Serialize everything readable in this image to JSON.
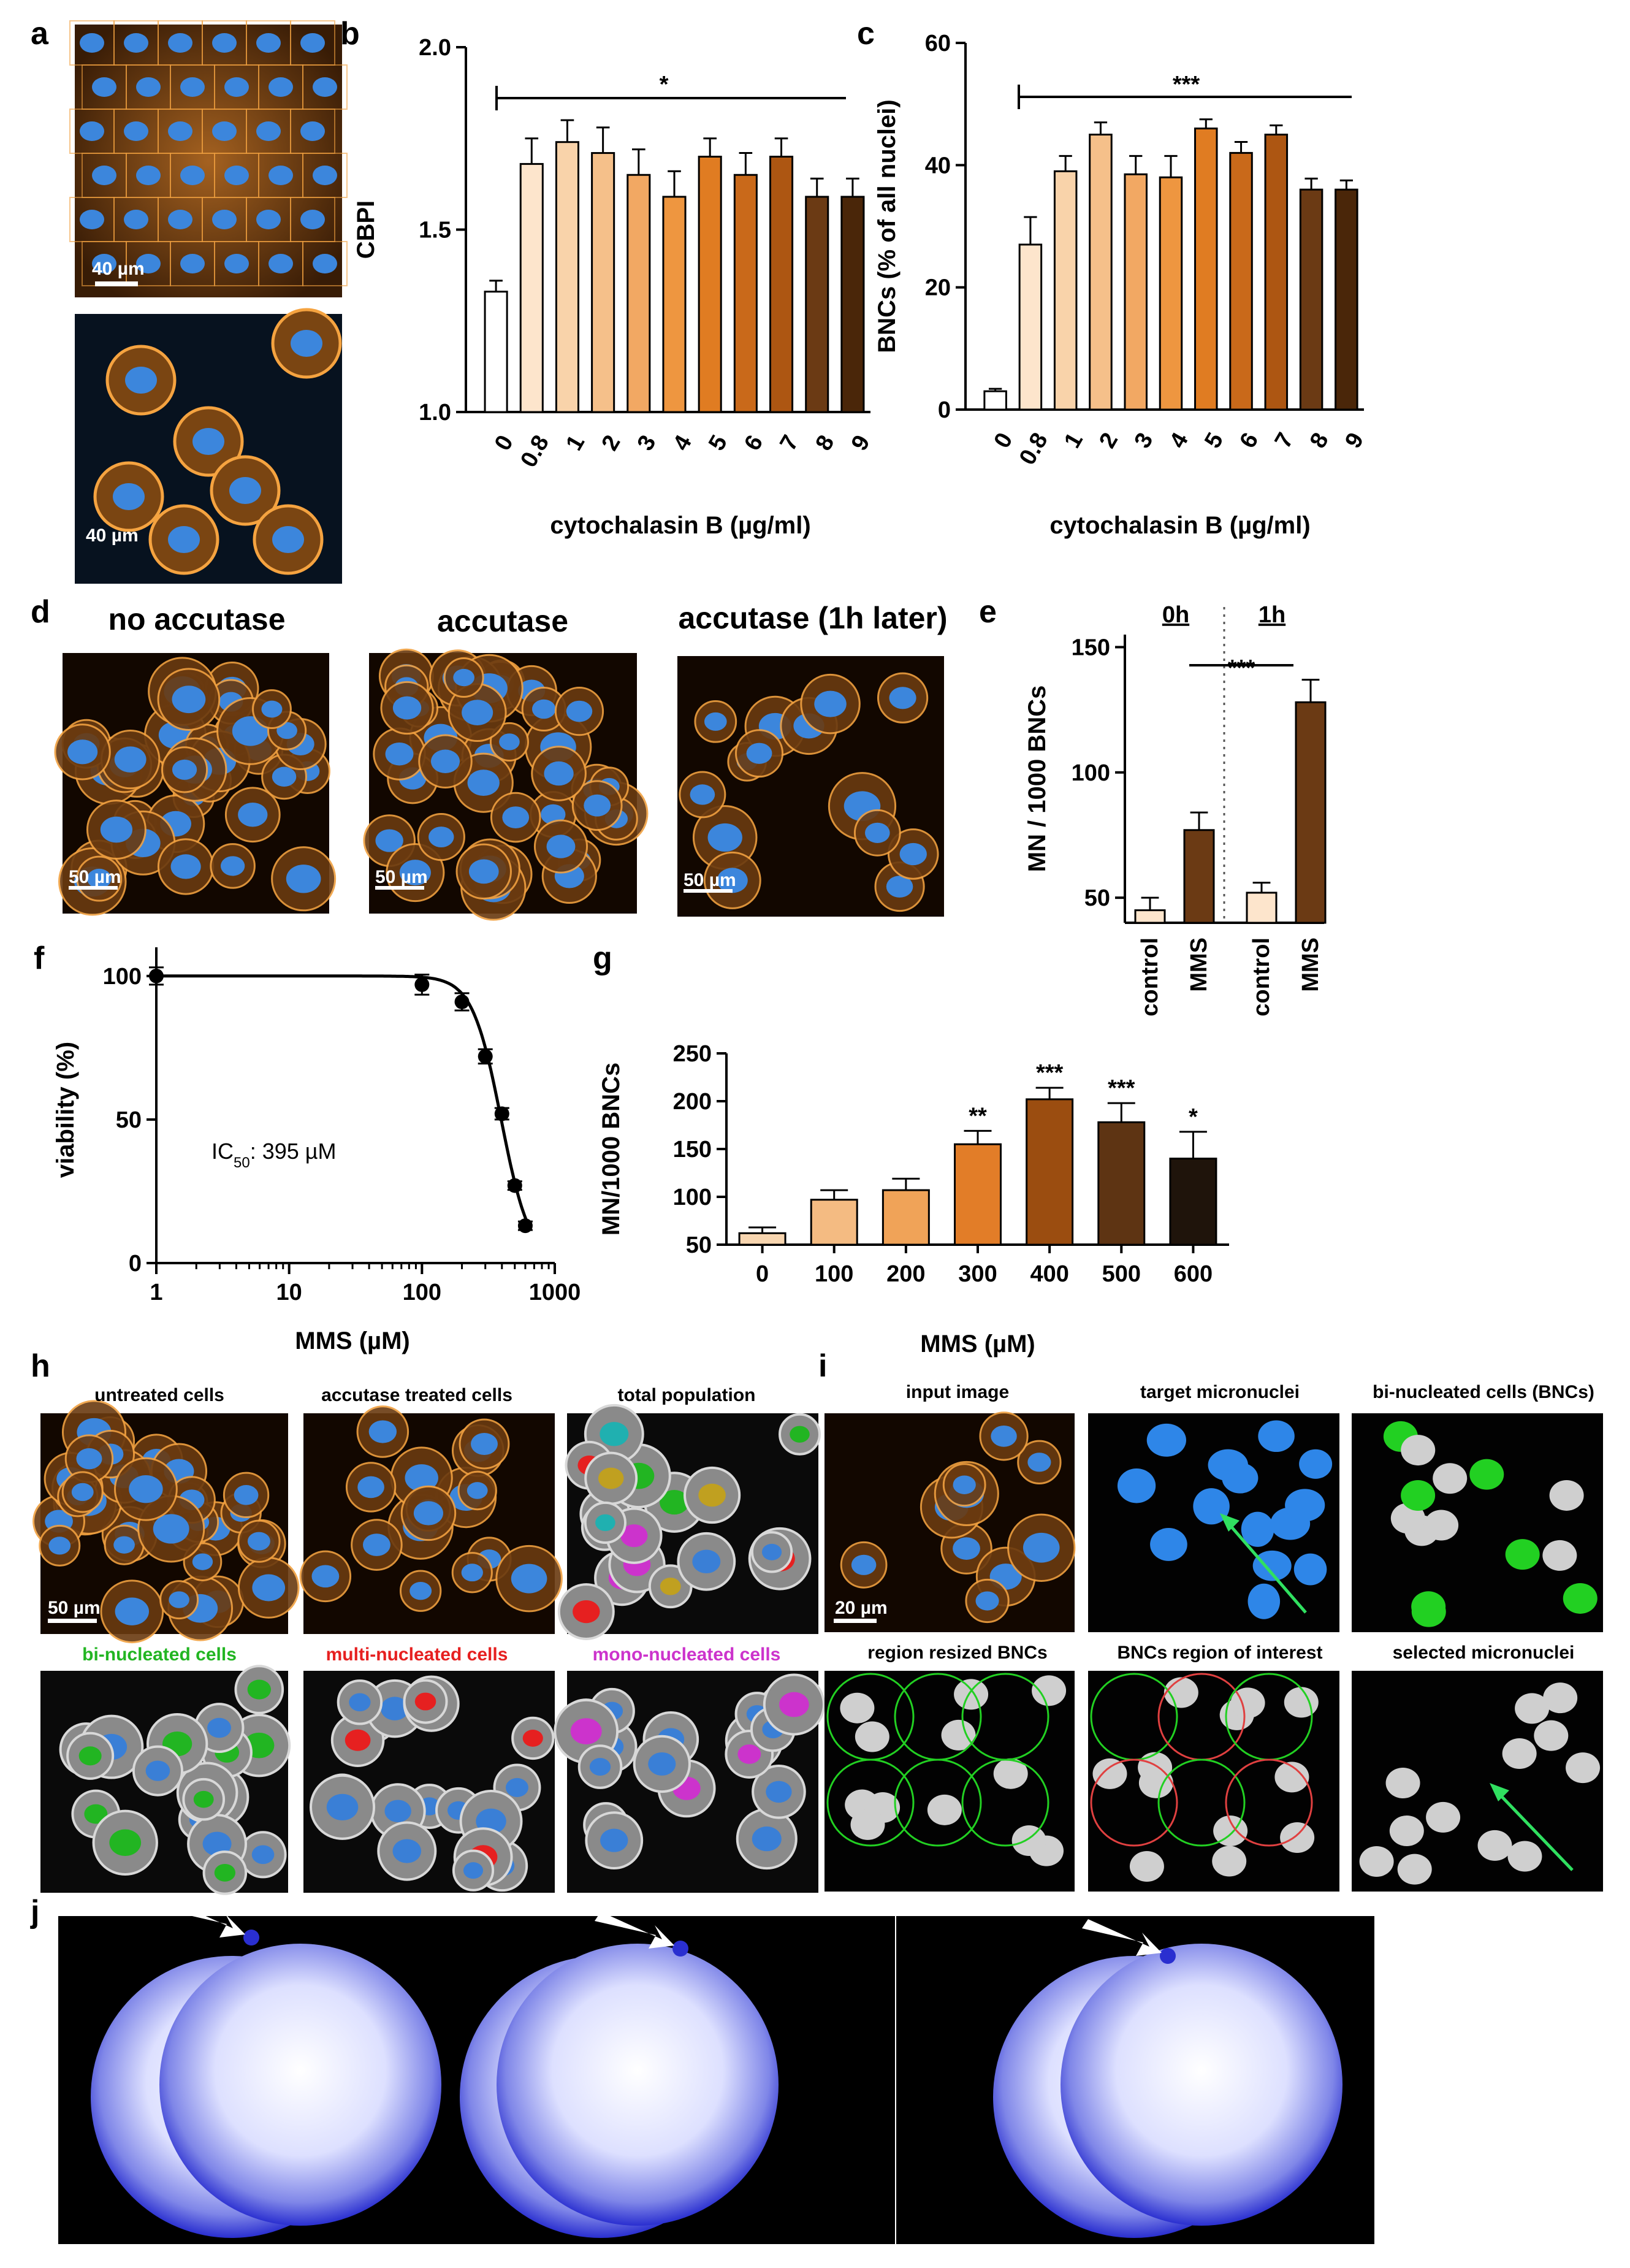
{
  "panels": {
    "a": {
      "letter": "a",
      "scalebars": [
        "40 µm",
        "40 µm"
      ]
    },
    "d": {
      "letter": "d",
      "titles": [
        "no accutase",
        "accutase",
        "accutase (1h later)"
      ],
      "scalebars": [
        "50 µm",
        "50 µm",
        "50 µm"
      ]
    },
    "h": {
      "letter": "h",
      "titles": [
        "untreated cells",
        "accutase treated cells",
        "total population",
        "bi-nucleated cells",
        "multi-nucleated cells",
        "mono-nucleated cells"
      ],
      "scalebar": "50 µm"
    },
    "i": {
      "letter": "i",
      "titles": [
        "input image",
        "target micronuclei",
        "bi-nucleated cells (BNCs)",
        "region resized BNCs",
        "BNCs region of interest",
        "selected micronuclei"
      ],
      "scalebar": "20 µm"
    },
    "j": {
      "letter": "j"
    }
  },
  "colors": {
    "orange_stain": "#e08a2a",
    "nucleus_blue": "#3a7fd6",
    "green_label": "#22b522",
    "red_label": "#e62020",
    "magenta_label": "#cc33cc"
  },
  "chart_data": [
    {
      "panel": "b",
      "type": "bar",
      "categories": [
        "0",
        "0.8",
        "1",
        "2",
        "3",
        "4",
        "5",
        "6",
        "7",
        "8",
        "9"
      ],
      "values": [
        1.33,
        1.68,
        1.74,
        1.71,
        1.65,
        1.59,
        1.7,
        1.65,
        1.7,
        1.59,
        1.59
      ],
      "errors": [
        0.03,
        0.07,
        0.06,
        0.07,
        0.07,
        0.07,
        0.05,
        0.06,
        0.05,
        0.05,
        0.05
      ],
      "colors": [
        "#ffffff",
        "#fde5cc",
        "#f9d3aa",
        "#f5c08a",
        "#f2a863",
        "#ee9640",
        "#e07c22",
        "#c9691a",
        "#ad5612",
        "#6b3a14",
        "#4a2609"
      ],
      "ylabel": "CBPI",
      "xlabel": "cytochalasin B (µg/ml)",
      "ylim": [
        1.0,
        2.0
      ],
      "yticks": [
        "1.0",
        "1.5",
        "2.0"
      ],
      "significance": "*"
    },
    {
      "panel": "c",
      "type": "bar",
      "categories": [
        "0",
        "0.8",
        "1",
        "2",
        "3",
        "4",
        "5",
        "6",
        "7",
        "8",
        "9"
      ],
      "values": [
        3,
        27,
        39,
        45,
        38.5,
        38,
        46,
        42,
        45,
        36,
        36
      ],
      "errors": [
        0.4,
        4.5,
        2.5,
        2.0,
        3.0,
        3.5,
        1.5,
        1.8,
        1.5,
        1.8,
        1.5
      ],
      "colors": [
        "#ffffff",
        "#fde5cc",
        "#f9d3aa",
        "#f5c08a",
        "#f2a863",
        "#ee9640",
        "#e07c22",
        "#c9691a",
        "#ad5612",
        "#6b3a14",
        "#4a2609"
      ],
      "ylabel": "BNCs (% of all nuclei)",
      "xlabel": "cytochalasin B (µg/ml)",
      "ylim": [
        0,
        60
      ],
      "yticks": [
        "0",
        "20",
        "40",
        "60"
      ],
      "significance": "***"
    },
    {
      "panel": "e",
      "type": "bar",
      "categories": [
        "control",
        "MMS",
        "control",
        "MMS"
      ],
      "groups": [
        "0h",
        "1h"
      ],
      "values": [
        45,
        77,
        52,
        128
      ],
      "errors": [
        5,
        7,
        4,
        9
      ],
      "colors": [
        "#fde5cc",
        "#6b3a14",
        "#fde5cc",
        "#6b3a14"
      ],
      "ylabel": "MN / 1000 BNCs",
      "ylim": [
        40,
        155
      ],
      "yticks": [
        "50",
        "100",
        "150"
      ],
      "significance": "***"
    },
    {
      "panel": "f",
      "type": "scatter",
      "x": [
        1,
        100,
        200,
        300,
        400,
        500,
        600
      ],
      "y": [
        100,
        97,
        91,
        72,
        52,
        27,
        13
      ],
      "errors": [
        3,
        3.5,
        3,
        2.5,
        2,
        1.5,
        1.5
      ],
      "xscale": "log",
      "xlim": [
        1,
        1000
      ],
      "xticks": [
        "1",
        "10",
        "100",
        "1000"
      ],
      "ylim": [
        0,
        110
      ],
      "yticks": [
        "0",
        "50",
        "100"
      ],
      "ylabel": "viability (%)",
      "xlabel": "MMS (µM)",
      "annotation_prefix": "IC",
      "annotation_sub": "50",
      "annotation_suffix": ": 395 µM"
    },
    {
      "panel": "g",
      "type": "bar",
      "categories": [
        "0",
        "100",
        "200",
        "300",
        "400",
        "500",
        "600"
      ],
      "values": [
        62,
        97,
        107,
        155,
        202,
        178,
        140
      ],
      "errors": [
        6,
        10,
        12,
        14,
        12,
        20,
        28
      ],
      "colors": [
        "#f8d6b0",
        "#f4bb82",
        "#f0a358",
        "#e27d28",
        "#9b4d10",
        "#5e3413",
        "#1f140b"
      ],
      "significance_labels": [
        "",
        "",
        "",
        "**",
        "***",
        "***",
        "*"
      ],
      "ylabel": "MN/1000 BNCs",
      "xlabel": "MMS (µM)",
      "ylim": [
        50,
        250
      ],
      "yticks": [
        "50",
        "100",
        "150",
        "200",
        "250"
      ]
    }
  ]
}
